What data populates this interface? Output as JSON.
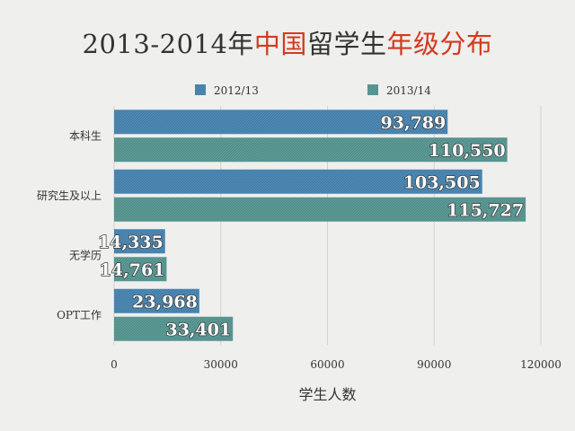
{
  "title": {
    "part1": "2013-2014年",
    "part2": "中国",
    "part3": "留学生",
    "part4": "年级分布"
  },
  "chart_data": {
    "type": "bar",
    "orientation": "horizontal",
    "title": "2013-2014年中国留学生年级分布",
    "categories": [
      "本科生",
      "研究生及以上",
      "无学历",
      "OPT工作"
    ],
    "series": [
      {
        "name": "2012/13",
        "values": [
          93789,
          103505,
          14335,
          23968
        ],
        "labels": [
          "93,789",
          "103,505",
          "14,335",
          "23,968"
        ],
        "color": "#4f8bb8"
      },
      {
        "name": "2013/14",
        "values": [
          110550,
          115727,
          14761,
          33401
        ],
        "labels": [
          "110,550",
          "115,727",
          "14,761",
          "33,401"
        ],
        "color": "#5e9c98"
      }
    ],
    "xticks": [
      0,
      30000,
      60000,
      90000,
      120000
    ],
    "xlabel": "学生人数",
    "ylabel": "",
    "xlim": [
      0,
      120000
    ],
    "grid": "vertical",
    "legend": "top"
  }
}
